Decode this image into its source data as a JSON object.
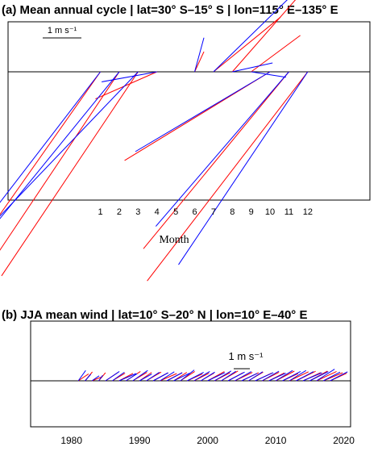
{
  "chart_data": [
    {
      "panel": "a",
      "type": "vector",
      "title": "(a) Mean annual cycle | lat=30° S–15° S | lon=115° E–135° E",
      "xlabel": "Month",
      "ylabel": "",
      "xlim": [
        -3.9,
        15.3
      ],
      "ticks": [
        1,
        2,
        3,
        4,
        5,
        6,
        7,
        8,
        9,
        10,
        11,
        12
      ],
      "tick_labels": [
        "1",
        "2",
        "3",
        "4",
        "5",
        "6",
        "7",
        "8",
        "9",
        "10",
        "11",
        "12"
      ],
      "scale_label": "1 m s⁻¹",
      "grid": false,
      "series": [
        {
          "color": "#0000ff",
          "vectors": [
            {
              "month": 1,
              "u": -4.25,
              "v": -5.52
            },
            {
              "month": 2,
              "u": -3.45,
              "v": -4.24
            },
            {
              "month": 3,
              "u": -3.73,
              "v": -3.89
            },
            {
              "month": 4,
              "u": -1.43,
              "v": -0.26
            },
            {
              "month": 5,
              "u": 0,
              "v": 0
            },
            {
              "month": 6,
              "u": 0.24,
              "v": 0.88
            },
            {
              "month": 7,
              "u": 1.98,
              "v": 1.93
            },
            {
              "month": 8,
              "u": 1.04,
              "v": 0.23
            },
            {
              "month": 9,
              "u": 0.9,
              "v": -0.14
            },
            {
              "month": 10,
              "u": -3.48,
              "v": -2.06
            },
            {
              "month": 11,
              "u": -3.44,
              "v": -3.99
            },
            {
              "month": 12,
              "u": -3.34,
              "v": -4.98
            }
          ]
        },
        {
          "color": "#ff0000",
          "vectors": [
            {
              "month": 1,
              "u": -4.25,
              "v": -6.03
            },
            {
              "month": 2,
              "u": -3.53,
              "v": -5.27
            },
            {
              "month": 3,
              "u": -3.53,
              "v": -5.27
            },
            {
              "month": 4,
              "u": -1.59,
              "v": -0.7
            },
            {
              "month": 5,
              "u": 0,
              "v": 0
            },
            {
              "month": 6,
              "u": 0.24,
              "v": 0.52
            },
            {
              "month": 7,
              "u": 1.73,
              "v": 1.41
            },
            {
              "month": 8,
              "u": 1.65,
              "v": 1.88
            },
            {
              "month": 9,
              "u": 1.27,
              "v": 0.94
            },
            {
              "month": 10,
              "u": -3.76,
              "v": -2.29
            },
            {
              "month": 11,
              "u": -3.76,
              "v": -4.57
            },
            {
              "month": 12,
              "u": -4.15,
              "v": -5.4
            }
          ]
        }
      ]
    },
    {
      "panel": "b",
      "type": "vector",
      "title": "(b) JJA mean wind | lat=10° S–20° N | lon=10° E–40° E",
      "xlabel": "",
      "ylabel": "",
      "xlim": [
        1974,
        2021
      ],
      "ticks": [
        1980,
        1990,
        2000,
        2010,
        2020
      ],
      "tick_labels": [
        "1980",
        "1990",
        "2000",
        "2010",
        "2020"
      ],
      "scale_label": "1 m s⁻¹",
      "grid": false,
      "years": [
        1981,
        1982,
        1983,
        1984,
        1985,
        1986,
        1987,
        1988,
        1989,
        1990,
        1991,
        1992,
        1993,
        1994,
        1995,
        1996,
        1997,
        1998,
        1999,
        2000,
        2001,
        2002,
        2003,
        2004,
        2005,
        2006,
        2007,
        2008,
        2009,
        2010,
        2011,
        2012,
        2013,
        2014,
        2015,
        2016,
        2017,
        2018
      ],
      "series": [
        {
          "color": "#0000ff",
          "u": [
            0.46,
            0.35,
            0.45,
            0.25,
            0.86,
            0.75,
            1.05,
            0.69,
            0.93,
            0.76,
            0.81,
            0.93,
            0.89,
            0.96,
            1.01,
            0.86,
            1.02,
            0.98,
            0.87,
            1.07,
            1.04,
            0.91,
            1.03,
            1.02,
            0.96,
            0.88,
            1.12,
            1.05,
            1.05,
            1.05,
            1.12,
            1.04,
            1.08,
            1.18,
            1.15,
            1.12,
            1.04,
            1.08
          ],
          "v": [
            0.64,
            0.4,
            0.31,
            0.34,
            0.58,
            0.53,
            0.45,
            0.44,
            0.64,
            0.42,
            0.53,
            0.5,
            0.56,
            0.5,
            0.48,
            0.67,
            0.53,
            0.58,
            0.54,
            0.51,
            0.61,
            0.59,
            0.54,
            0.57,
            0.46,
            0.56,
            0.51,
            0.6,
            0.48,
            0.64,
            0.58,
            0.64,
            0.57,
            0.5,
            0.57,
            0.72,
            0.54,
            0.56
          ]
        },
        {
          "color": "#ff0000",
          "u": [
            0.64,
            0.45,
            0.63,
            0.42,
            0.76,
            0.79,
            0.86,
            0.9,
            0.88,
            0.75,
            0.92,
            0.93,
            1.04,
            0.96,
            0.82,
            0.89,
            0.95,
            0.93,
            0.82,
            1.04,
            0.96,
            1.04,
            0.93,
            1.09,
            1.05,
            0.91,
            1.02,
            1.05,
            0.96,
            1.16,
            0.97,
            1.19,
            1.21,
            1.1,
            1.1,
            1.24,
            1.2,
            1.03
          ],
          "v": [
            0.43,
            0.55,
            0.25,
            0.5,
            0.51,
            0.47,
            0.46,
            0.58,
            0.52,
            0.52,
            0.54,
            0.5,
            0.45,
            0.51,
            0.52,
            0.58,
            0.43,
            0.47,
            0.48,
            0.57,
            0.5,
            0.61,
            0.5,
            0.52,
            0.5,
            0.54,
            0.48,
            0.53,
            0.49,
            0.6,
            0.45,
            0.56,
            0.59,
            0.51,
            0.6,
            0.58,
            0.5,
            0.47
          ]
        }
      ]
    }
  ]
}
